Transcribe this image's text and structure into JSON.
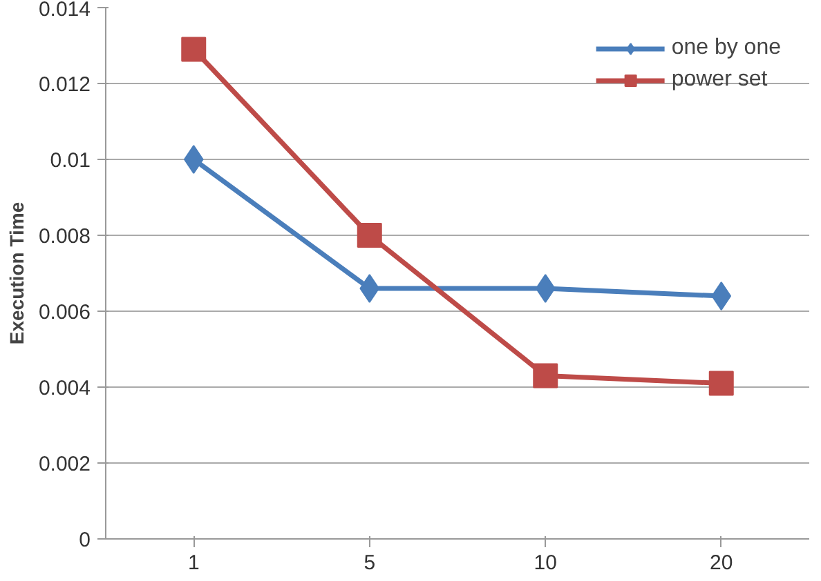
{
  "chart_data": {
    "type": "line",
    "ylabel": "Execution Time",
    "categories": [
      "1",
      "5",
      "10",
      "20"
    ],
    "series": [
      {
        "name": "one by one",
        "color": "#4a7ebb",
        "marker": "diamond",
        "values": [
          0.01,
          0.0066,
          0.0066,
          0.0064
        ]
      },
      {
        "name": "power set",
        "color": "#be4b48",
        "marker": "square",
        "values": [
          0.0129,
          0.008,
          0.0043,
          0.0041
        ]
      }
    ],
    "ylim": [
      0,
      0.014
    ],
    "yticks": [
      0,
      0.002,
      0.004,
      0.006,
      0.008,
      0.01,
      0.012,
      0.014
    ],
    "grid": "y",
    "legend": "top right"
  }
}
